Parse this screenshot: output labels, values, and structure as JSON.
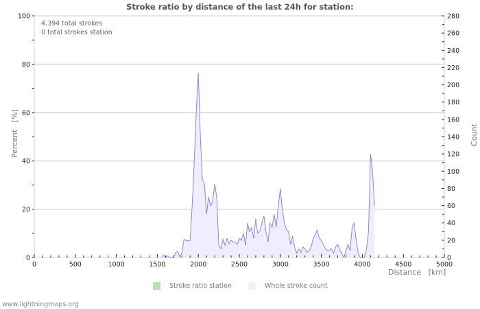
{
  "chart": {
    "title": "Stroke ratio by distance of the last 24h for station:",
    "annotations": [
      "4,394 total strokes",
      "0 total strokes station"
    ],
    "y_left_label": "Percent   [%]",
    "y_right_label": "Count",
    "x_label": "Distance   [km]",
    "legend": [
      {
        "label": "Stroke ratio station",
        "color": "#b3e0b3"
      },
      {
        "label": "Whole stroke count",
        "color": "#eeeeff"
      }
    ],
    "footer": "www.lightningmaps.org",
    "colors": {
      "line": "#7b7bea",
      "fill": "#eeeefc",
      "grid": "#c8c8c8"
    }
  },
  "chart_data": {
    "type": "area",
    "title": "Stroke ratio by distance of the last 24h for station:",
    "xlabel": "Distance [km]",
    "ylabel_left": "Percent [%]",
    "ylabel_right": "Count",
    "xlim": [
      0,
      5000
    ],
    "ylim_left": [
      0,
      100
    ],
    "ylim_right": [
      0,
      280
    ],
    "x_ticks": [
      0,
      500,
      1000,
      1500,
      2000,
      2500,
      3000,
      3500,
      4000,
      4500,
      5000
    ],
    "y_left_ticks": [
      0,
      20,
      40,
      60,
      80,
      100
    ],
    "y_right_ticks": [
      0,
      20,
      40,
      60,
      80,
      100,
      120,
      140,
      160,
      180,
      200,
      220,
      240,
      260,
      280
    ],
    "grid": true,
    "legend_position": "bottom",
    "series": [
      {
        "name": "Stroke ratio station",
        "axis": "left",
        "values": []
      },
      {
        "name": "Whole stroke count",
        "axis": "right",
        "x": [
          1550,
          1575,
          1600,
          1625,
          1650,
          1675,
          1700,
          1725,
          1750,
          1775,
          1800,
          1825,
          1850,
          1875,
          1900,
          1925,
          1950,
          1975,
          2000,
          2025,
          2050,
          2075,
          2100,
          2125,
          2150,
          2175,
          2200,
          2225,
          2250,
          2275,
          2300,
          2325,
          2350,
          2375,
          2400,
          2425,
          2450,
          2475,
          2500,
          2525,
          2550,
          2575,
          2600,
          2625,
          2650,
          2675,
          2700,
          2725,
          2750,
          2775,
          2800,
          2825,
          2850,
          2875,
          2900,
          2925,
          2950,
          2975,
          3000,
          3025,
          3050,
          3075,
          3100,
          3125,
          3150,
          3175,
          3200,
          3225,
          3250,
          3275,
          3300,
          3325,
          3350,
          3375,
          3400,
          3425,
          3450,
          3475,
          3500,
          3525,
          3550,
          3575,
          3600,
          3625,
          3650,
          3675,
          3700,
          3725,
          3750,
          3775,
          3800,
          3825,
          3850,
          3875,
          3900,
          3925,
          3950,
          3975,
          4000,
          4025,
          4050,
          4075,
          4100,
          4125,
          4150
        ],
        "values": [
          0,
          3,
          0,
          2,
          0,
          0,
          0,
          6,
          7,
          0,
          6,
          21,
          20,
          19,
          20,
          60,
          110,
          170,
          214,
          140,
          90,
          85,
          50,
          70,
          60,
          65,
          85,
          70,
          14,
          10,
          21,
          14,
          22,
          16,
          20,
          18,
          18,
          15,
          22,
          20,
          28,
          14,
          40,
          30,
          35,
          22,
          45,
          28,
          30,
          40,
          48,
          30,
          18,
          40,
          35,
          50,
          35,
          60,
          80,
          55,
          40,
          32,
          30,
          15,
          25,
          12,
          5,
          10,
          6,
          12,
          10,
          6,
          8,
          12,
          22,
          26,
          32,
          22,
          20,
          15,
          10,
          8,
          8,
          10,
          5,
          12,
          15,
          8,
          5,
          0,
          8,
          15,
          8,
          35,
          40,
          20,
          5,
          0,
          0,
          0,
          10,
          30,
          120,
          100,
          60
        ]
      }
    ]
  }
}
